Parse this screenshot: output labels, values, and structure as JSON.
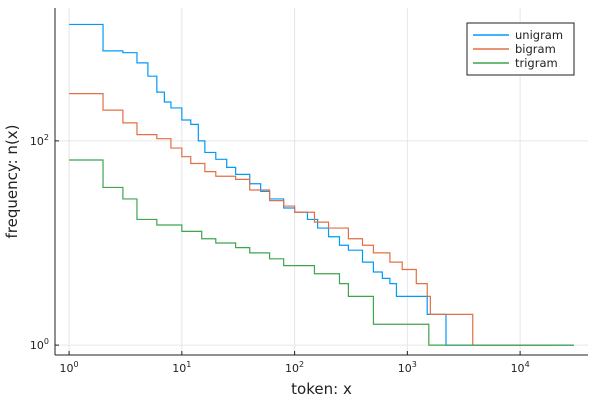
{
  "chart_data": {
    "type": "line",
    "title": "",
    "xlabel": "token: x",
    "ylabel": "frequency: n(x)",
    "xscale": "log",
    "yscale": "log",
    "xlim": [
      0.75,
      40000
    ],
    "ylim": [
      0.8,
      2000
    ],
    "grid": true,
    "legend_position": "top-right",
    "xticks": [
      {
        "value": 1,
        "base": "10",
        "exp": "0"
      },
      {
        "value": 10,
        "base": "10",
        "exp": "1"
      },
      {
        "value": 100,
        "base": "10",
        "exp": "2"
      },
      {
        "value": 1000,
        "base": "10",
        "exp": "3"
      },
      {
        "value": 10000,
        "base": "10",
        "exp": "4"
      }
    ],
    "yticks": [
      {
        "value": 1,
        "base": "10",
        "exp": "0"
      },
      {
        "value": 100,
        "base": "10",
        "exp": "2"
      }
    ],
    "series": [
      {
        "name": "unigram",
        "color": "#009af9",
        "points": [
          [
            1,
            1380
          ],
          [
            2,
            760
          ],
          [
            3,
            730
          ],
          [
            4,
            580
          ],
          [
            5,
            430
          ],
          [
            6,
            300
          ],
          [
            7,
            240
          ],
          [
            8,
            210
          ],
          [
            10,
            160
          ],
          [
            12,
            145
          ],
          [
            14,
            100
          ],
          [
            16,
            77
          ],
          [
            20,
            66
          ],
          [
            25,
            55
          ],
          [
            30,
            47
          ],
          [
            40,
            38
          ],
          [
            50,
            32
          ],
          [
            60,
            27
          ],
          [
            80,
            22
          ],
          [
            100,
            20
          ],
          [
            130,
            17
          ],
          [
            160,
            14
          ],
          [
            200,
            11.5
          ],
          [
            250,
            9.5
          ],
          [
            300,
            8.5
          ],
          [
            400,
            6.5
          ],
          [
            500,
            5.2
          ],
          [
            600,
            4.5
          ],
          [
            700,
            4
          ],
          [
            800,
            3
          ],
          [
            1000,
            3
          ],
          [
            1500,
            2
          ],
          [
            2200,
            2
          ],
          [
            2201,
            1
          ],
          [
            30000,
            1
          ]
        ]
      },
      {
        "name": "bigram",
        "color": "#e26f46",
        "points": [
          [
            1,
            290
          ],
          [
            2,
            200
          ],
          [
            3,
            150
          ],
          [
            4,
            115
          ],
          [
            6,
            105
          ],
          [
            8,
            85
          ],
          [
            10,
            70
          ],
          [
            12,
            60
          ],
          [
            16,
            50
          ],
          [
            20,
            45
          ],
          [
            30,
            42
          ],
          [
            40,
            33
          ],
          [
            60,
            26
          ],
          [
            80,
            23
          ],
          [
            100,
            20
          ],
          [
            150,
            16
          ],
          [
            200,
            14
          ],
          [
            300,
            11
          ],
          [
            400,
            9.5
          ],
          [
            500,
            8
          ],
          [
            700,
            6.5
          ],
          [
            900,
            5.5
          ],
          [
            1200,
            4
          ],
          [
            1500,
            3
          ],
          [
            1600,
            2
          ],
          [
            3800,
            2
          ],
          [
            3801,
            1
          ],
          [
            20000,
            1
          ]
        ]
      },
      {
        "name": "trigram",
        "color": "#3ea44e",
        "points": [
          [
            1,
            65
          ],
          [
            2,
            35
          ],
          [
            3,
            27
          ],
          [
            4,
            17
          ],
          [
            6,
            15
          ],
          [
            10,
            13
          ],
          [
            15,
            11
          ],
          [
            20,
            10
          ],
          [
            30,
            9
          ],
          [
            40,
            8
          ],
          [
            60,
            7
          ],
          [
            80,
            6
          ],
          [
            150,
            5
          ],
          [
            250,
            4
          ],
          [
            300,
            3
          ],
          [
            500,
            2
          ],
          [
            500.5,
            1.6
          ],
          [
            1500,
            1.6
          ],
          [
            1550,
            1
          ],
          [
            30000,
            1
          ]
        ]
      }
    ]
  }
}
